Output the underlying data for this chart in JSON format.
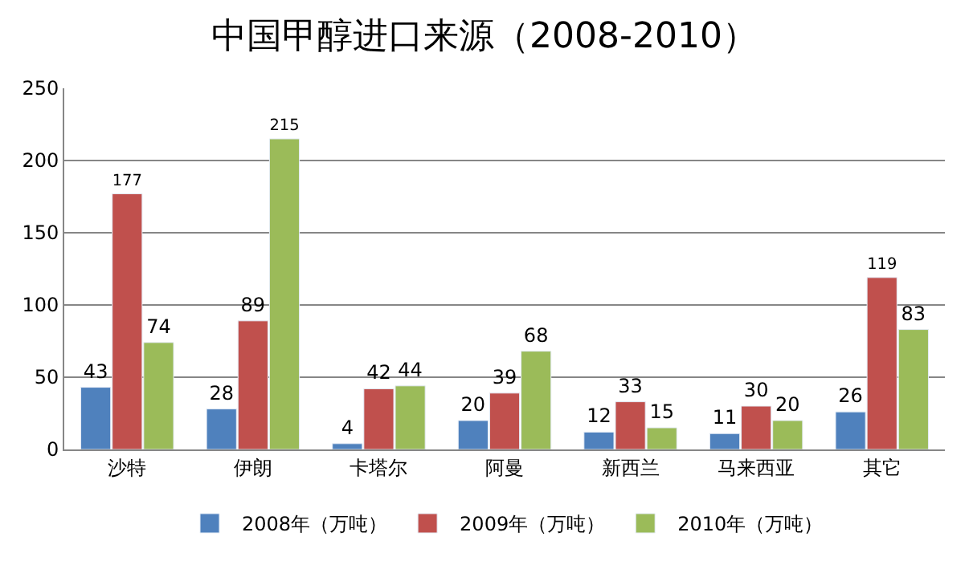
{
  "chart_data": {
    "type": "bar",
    "title": "中国甲醇进口来源（2008-2010）",
    "categories": [
      "沙特",
      "伊朗",
      "卡塔尔",
      "阿曼",
      "新西兰",
      "马来西亚",
      "其它"
    ],
    "series": [
      {
        "name": "2008年（万吨）",
        "color": "#4f81bd",
        "values": [
          43,
          28,
          4,
          20,
          12,
          11,
          26
        ]
      },
      {
        "name": "2009年（万吨）",
        "color": "#c0504d",
        "values": [
          177,
          89,
          42,
          39,
          33,
          30,
          119
        ]
      },
      {
        "name": "2010年（万吨）",
        "color": "#9bbb59",
        "values": [
          74,
          215,
          44,
          68,
          15,
          20,
          83
        ]
      }
    ],
    "ylim": [
      0,
      250
    ],
    "yticks": [
      0,
      50,
      100,
      150,
      200,
      250
    ],
    "grid": "y",
    "legend": "bottom",
    "data_labels": true
  }
}
